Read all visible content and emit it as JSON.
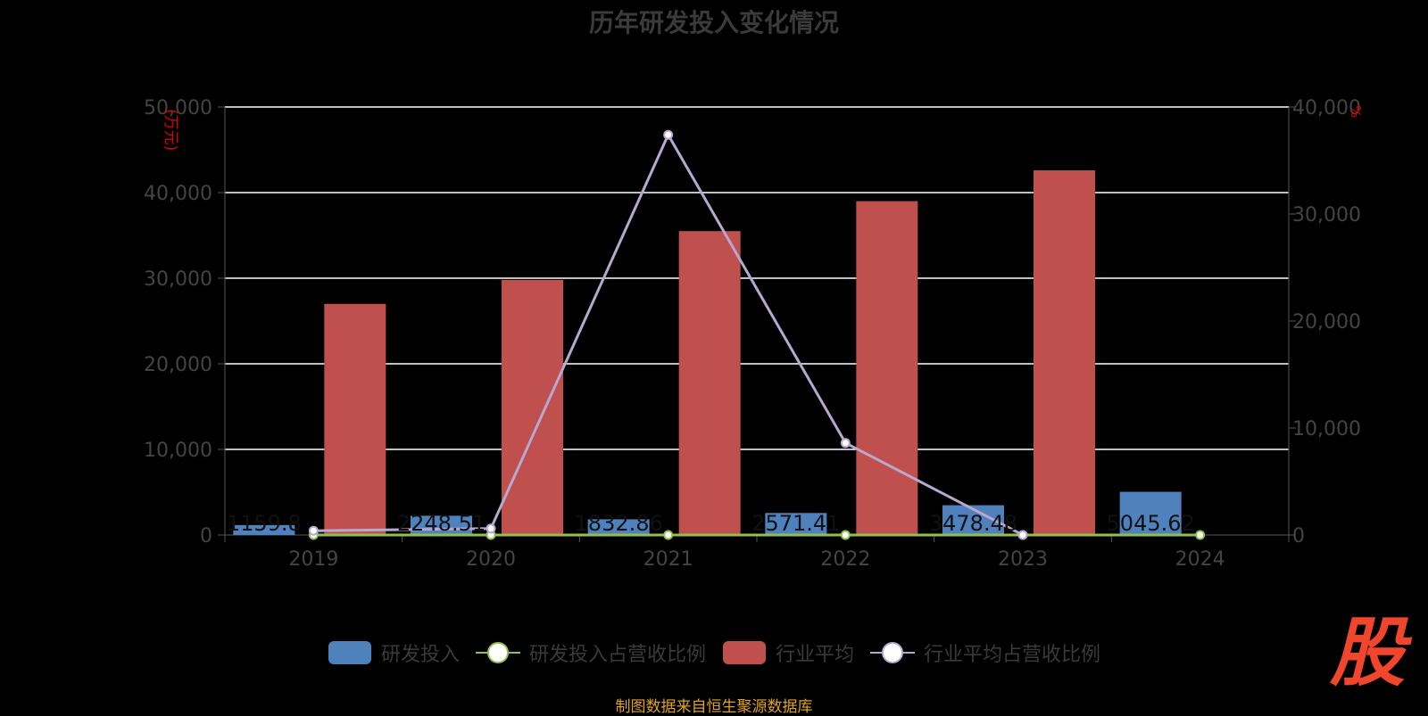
{
  "chart_data": {
    "type": "bar",
    "title": "历年研发投入变化情况",
    "source": "制图数据来自恒生聚源数据库",
    "categories": [
      "2019",
      "2020",
      "2021",
      "2022",
      "2023",
      "2024"
    ],
    "y_left": {
      "label": "(万元)",
      "range": [
        0,
        50000
      ],
      "ticks": [
        "0",
        "10,000",
        "20,000",
        "30,000",
        "40,000",
        "50,000"
      ]
    },
    "y_right": {
      "label": "%",
      "range": [
        0,
        40000
      ],
      "ticks": [
        "0",
        "10,000",
        "20,000",
        "30,000",
        "40,000"
      ]
    },
    "grid": true,
    "legend_position": "bottom",
    "series": [
      {
        "name": "研发投入",
        "type": "bar",
        "axis": "left",
        "color": "#4f81bd",
        "values": [
          1159.8,
          2248.51,
          1832.86,
          2571.41,
          3478.48,
          5045.62
        ],
        "data_labels": [
          "1159.8",
          "2248.51",
          "1832.86",
          "2571.41",
          "3478.48",
          "5045.62"
        ]
      },
      {
        "name": "研发投入占营收比例",
        "type": "line",
        "axis": "right",
        "color": "#92c050",
        "values": [
          0.5,
          0.5,
          0.5,
          0.5,
          0.5,
          0.5
        ]
      },
      {
        "name": "行业平均",
        "type": "bar",
        "axis": "left",
        "color": "#c0504d",
        "values": [
          27000,
          29800,
          35500,
          39000,
          42600,
          null
        ]
      },
      {
        "name": "行业平均占营收比例",
        "type": "line",
        "axis": "right",
        "color": "#b7a8cf",
        "values": [
          400,
          600,
          37400,
          8600,
          0,
          null
        ]
      }
    ]
  },
  "logo": {
    "text": "股"
  }
}
